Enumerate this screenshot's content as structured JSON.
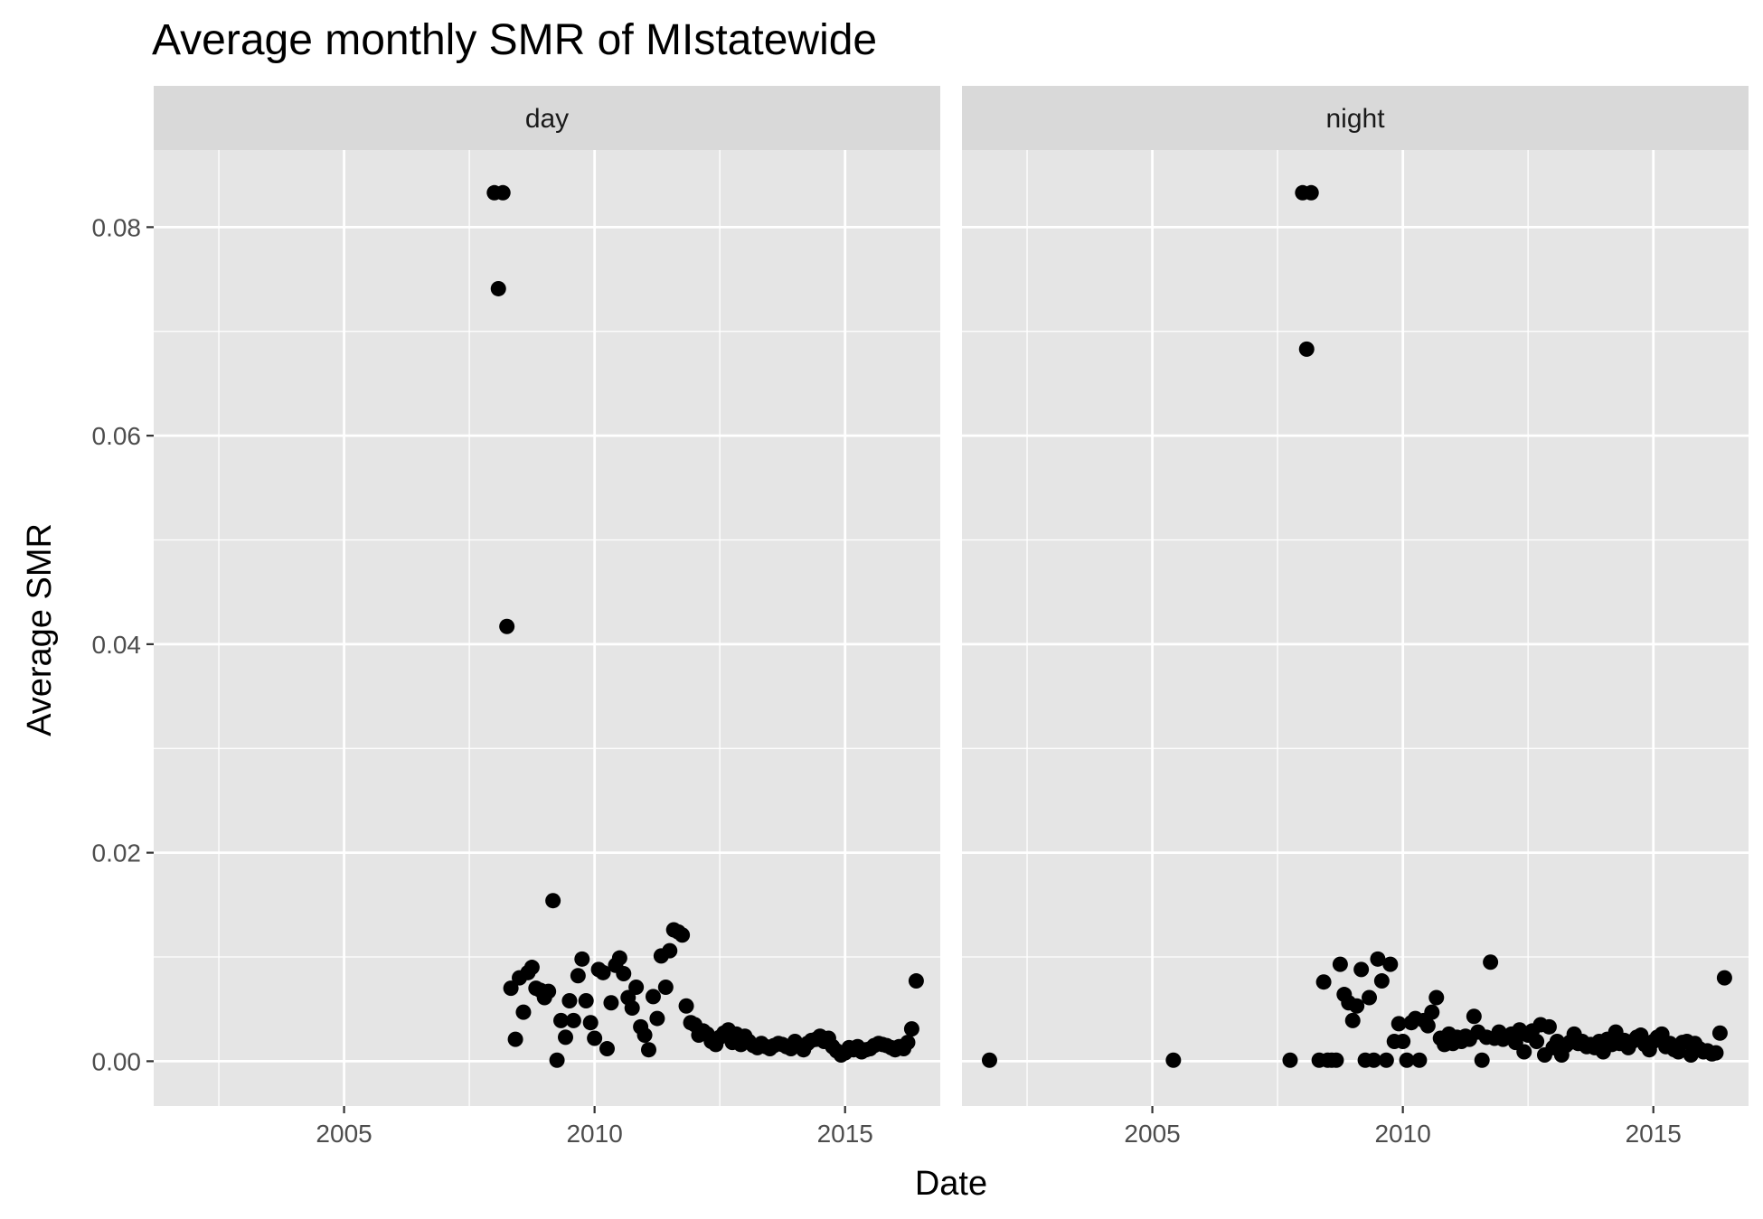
{
  "chart_data": {
    "type": "scatter",
    "title": "Average monthly SMR of MIstatewide",
    "xlabel": "Date",
    "ylabel": "Average SMR",
    "xlim": [
      2001.2,
      2016.9
    ],
    "ylim": [
      -0.0043,
      0.0874
    ],
    "x_ticks": [
      2005,
      2010,
      2015
    ],
    "x_tick_labels": [
      "2005",
      "2010",
      "2015"
    ],
    "y_ticks": [
      0.0,
      0.02,
      0.04,
      0.06,
      0.08
    ],
    "y_tick_labels": [
      "0.00",
      "0.02",
      "0.04",
      "0.06",
      "0.08"
    ],
    "grid": true,
    "colors": {
      "panel": "#e5e5e5",
      "strip": "#d9d9d9",
      "grid": "#ffffff",
      "point": "#000000"
    },
    "panels": [
      {
        "label": "day",
        "points": [
          [
            2008.0,
            0.0833
          ],
          [
            2008.17,
            0.0833
          ],
          [
            2008.08,
            0.0741
          ],
          [
            2008.25,
            0.0417
          ],
          [
            2008.33,
            0.007
          ],
          [
            2008.42,
            0.0021
          ],
          [
            2008.5,
            0.008
          ],
          [
            2008.58,
            0.0047
          ],
          [
            2008.67,
            0.0085
          ],
          [
            2008.75,
            0.009
          ],
          [
            2008.83,
            0.007
          ],
          [
            2008.92,
            0.0068
          ],
          [
            2009.0,
            0.0061
          ],
          [
            2009.08,
            0.0067
          ],
          [
            2009.17,
            0.0154
          ],
          [
            2009.25,
            0.0001
          ],
          [
            2009.33,
            0.0039
          ],
          [
            2009.42,
            0.0023
          ],
          [
            2009.5,
            0.0058
          ],
          [
            2009.58,
            0.0039
          ],
          [
            2009.67,
            0.0082
          ],
          [
            2009.75,
            0.0098
          ],
          [
            2009.83,
            0.0058
          ],
          [
            2009.92,
            0.0037
          ],
          [
            2010.0,
            0.0022
          ],
          [
            2010.08,
            0.0088
          ],
          [
            2010.17,
            0.0085
          ],
          [
            2010.25,
            0.0012
          ],
          [
            2010.33,
            0.0056
          ],
          [
            2010.42,
            0.0092
          ],
          [
            2010.5,
            0.0099
          ],
          [
            2010.58,
            0.0084
          ],
          [
            2010.67,
            0.0061
          ],
          [
            2010.75,
            0.0051
          ],
          [
            2010.83,
            0.0071
          ],
          [
            2010.92,
            0.0033
          ],
          [
            2011.0,
            0.0025
          ],
          [
            2011.08,
            0.0011
          ],
          [
            2011.17,
            0.0062
          ],
          [
            2011.25,
            0.0041
          ],
          [
            2011.33,
            0.0101
          ],
          [
            2011.42,
            0.0071
          ],
          [
            2011.5,
            0.0106
          ],
          [
            2011.58,
            0.0126
          ],
          [
            2011.67,
            0.0124
          ],
          [
            2011.75,
            0.0121
          ],
          [
            2011.83,
            0.0053
          ],
          [
            2011.92,
            0.0037
          ],
          [
            2012.0,
            0.0035
          ],
          [
            2012.08,
            0.0025
          ],
          [
            2012.17,
            0.0029
          ],
          [
            2012.25,
            0.0026
          ],
          [
            2012.33,
            0.0019
          ],
          [
            2012.42,
            0.0016
          ],
          [
            2012.5,
            0.0023
          ],
          [
            2012.58,
            0.0027
          ],
          [
            2012.67,
            0.003
          ],
          [
            2012.75,
            0.0018
          ],
          [
            2012.83,
            0.0026
          ],
          [
            2012.92,
            0.0016
          ],
          [
            2013.0,
            0.0024
          ],
          [
            2013.08,
            0.0019
          ],
          [
            2013.17,
            0.0015
          ],
          [
            2013.25,
            0.0013
          ],
          [
            2013.33,
            0.0017
          ],
          [
            2013.42,
            0.0014
          ],
          [
            2013.5,
            0.0012
          ],
          [
            2013.58,
            0.0015
          ],
          [
            2013.67,
            0.0017
          ],
          [
            2013.75,
            0.0016
          ],
          [
            2013.83,
            0.0014
          ],
          [
            2013.92,
            0.0012
          ],
          [
            2014.0,
            0.0019
          ],
          [
            2014.08,
            0.0015
          ],
          [
            2014.17,
            0.0011
          ],
          [
            2014.25,
            0.0017
          ],
          [
            2014.33,
            0.002
          ],
          [
            2014.42,
            0.0021
          ],
          [
            2014.5,
            0.0024
          ],
          [
            2014.58,
            0.0019
          ],
          [
            2014.67,
            0.0022
          ],
          [
            2014.75,
            0.0014
          ],
          [
            2014.83,
            0.001
          ],
          [
            2014.92,
            0.0006
          ],
          [
            2015.0,
            0.0008
          ],
          [
            2015.08,
            0.0013
          ],
          [
            2015.17,
            0.0011
          ],
          [
            2015.25,
            0.0014
          ],
          [
            2015.33,
            0.0009
          ],
          [
            2015.42,
            0.0011
          ],
          [
            2015.5,
            0.0012
          ],
          [
            2015.58,
            0.0015
          ],
          [
            2015.67,
            0.0017
          ],
          [
            2015.75,
            0.0016
          ],
          [
            2015.83,
            0.0015
          ],
          [
            2015.92,
            0.0013
          ],
          [
            2016.0,
            0.0011
          ],
          [
            2016.08,
            0.0014
          ],
          [
            2016.17,
            0.0012
          ],
          [
            2016.25,
            0.0018
          ],
          [
            2016.33,
            0.0031
          ],
          [
            2016.42,
            0.0077
          ]
        ]
      },
      {
        "label": "night",
        "points": [
          [
            2001.75,
            0.0001
          ],
          [
            2005.42,
            0.0001
          ],
          [
            2007.75,
            0.0001
          ],
          [
            2008.0,
            0.0833
          ],
          [
            2008.17,
            0.0833
          ],
          [
            2008.08,
            0.0683
          ],
          [
            2008.33,
            0.0001
          ],
          [
            2008.42,
            0.0076
          ],
          [
            2008.5,
            0.0001
          ],
          [
            2008.58,
            0.0001
          ],
          [
            2008.67,
            0.0001
          ],
          [
            2008.75,
            0.0093
          ],
          [
            2008.83,
            0.0064
          ],
          [
            2008.92,
            0.0056
          ],
          [
            2009.0,
            0.0039
          ],
          [
            2009.08,
            0.0053
          ],
          [
            2009.17,
            0.0088
          ],
          [
            2009.25,
            0.0001
          ],
          [
            2009.33,
            0.0061
          ],
          [
            2009.42,
            0.0001
          ],
          [
            2009.5,
            0.0098
          ],
          [
            2009.58,
            0.0077
          ],
          [
            2009.67,
            0.0001
          ],
          [
            2009.75,
            0.0093
          ],
          [
            2009.83,
            0.0019
          ],
          [
            2009.92,
            0.0036
          ],
          [
            2010.0,
            0.0019
          ],
          [
            2010.08,
            0.0001
          ],
          [
            2010.17,
            0.0037
          ],
          [
            2010.25,
            0.0041
          ],
          [
            2010.33,
            0.0001
          ],
          [
            2010.42,
            0.0039
          ],
          [
            2010.5,
            0.0034
          ],
          [
            2010.58,
            0.0047
          ],
          [
            2010.67,
            0.0061
          ],
          [
            2010.75,
            0.0022
          ],
          [
            2010.83,
            0.0016
          ],
          [
            2010.92,
            0.0026
          ],
          [
            2011.0,
            0.0017
          ],
          [
            2011.08,
            0.0023
          ],
          [
            2011.17,
            0.0019
          ],
          [
            2011.25,
            0.0024
          ],
          [
            2011.33,
            0.0021
          ],
          [
            2011.42,
            0.0043
          ],
          [
            2011.5,
            0.0028
          ],
          [
            2011.58,
            0.0001
          ],
          [
            2011.67,
            0.0023
          ],
          [
            2011.75,
            0.0095
          ],
          [
            2011.83,
            0.0022
          ],
          [
            2011.92,
            0.0028
          ],
          [
            2012.0,
            0.0021
          ],
          [
            2012.08,
            0.0024
          ],
          [
            2012.17,
            0.0026
          ],
          [
            2012.25,
            0.0018
          ],
          [
            2012.33,
            0.003
          ],
          [
            2012.42,
            0.0009
          ],
          [
            2012.5,
            0.0025
          ],
          [
            2012.58,
            0.0029
          ],
          [
            2012.67,
            0.0019
          ],
          [
            2012.75,
            0.0035
          ],
          [
            2012.83,
            0.0006
          ],
          [
            2012.92,
            0.0033
          ],
          [
            2013.0,
            0.0013
          ],
          [
            2013.08,
            0.0019
          ],
          [
            2013.17,
            0.0006
          ],
          [
            2013.25,
            0.0015
          ],
          [
            2013.33,
            0.0018
          ],
          [
            2013.42,
            0.0026
          ],
          [
            2013.5,
            0.0017
          ],
          [
            2013.58,
            0.0019
          ],
          [
            2013.67,
            0.0014
          ],
          [
            2013.75,
            0.0016
          ],
          [
            2013.83,
            0.0013
          ],
          [
            2013.92,
            0.0019
          ],
          [
            2014.0,
            0.0009
          ],
          [
            2014.08,
            0.0021
          ],
          [
            2014.17,
            0.0016
          ],
          [
            2014.25,
            0.0028
          ],
          [
            2014.33,
            0.0017
          ],
          [
            2014.42,
            0.002
          ],
          [
            2014.5,
            0.0013
          ],
          [
            2014.58,
            0.0019
          ],
          [
            2014.67,
            0.0023
          ],
          [
            2014.75,
            0.0025
          ],
          [
            2014.83,
            0.0016
          ],
          [
            2014.92,
            0.0011
          ],
          [
            2015.0,
            0.0019
          ],
          [
            2015.08,
            0.0023
          ],
          [
            2015.17,
            0.0026
          ],
          [
            2015.25,
            0.0014
          ],
          [
            2015.33,
            0.0017
          ],
          [
            2015.42,
            0.0011
          ],
          [
            2015.5,
            0.0009
          ],
          [
            2015.58,
            0.0018
          ],
          [
            2015.67,
            0.0019
          ],
          [
            2015.75,
            0.0006
          ],
          [
            2015.83,
            0.0017
          ],
          [
            2015.92,
            0.0012
          ],
          [
            2016.0,
            0.0009
          ],
          [
            2016.08,
            0.001
          ],
          [
            2016.17,
            0.0007
          ],
          [
            2016.25,
            0.0008
          ],
          [
            2016.33,
            0.0027
          ],
          [
            2016.42,
            0.008
          ]
        ]
      }
    ]
  }
}
